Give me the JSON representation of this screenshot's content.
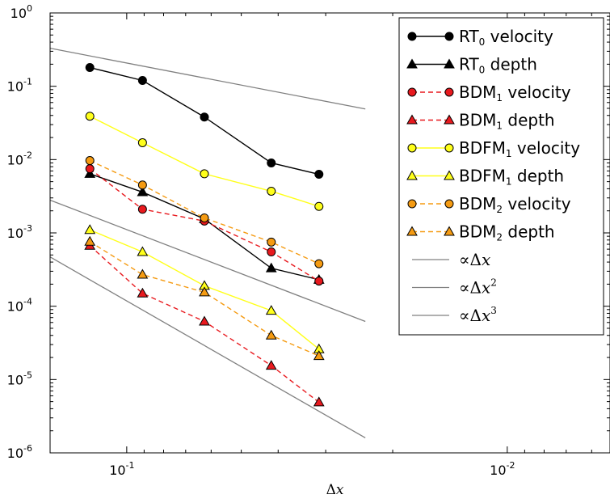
{
  "chart_data": {
    "type": "line",
    "x_scale": "log",
    "y_scale": "log",
    "x_reversed": true,
    "xlabel": "Δx",
    "ylabel": "",
    "xlim": [
      0.159,
      0.00537
    ],
    "ylim": [
      1e-06,
      1
    ],
    "x_ticks": [
      {
        "value": 0.1,
        "base": "10",
        "exp": "-1"
      },
      {
        "value": 0.01,
        "base": "10",
        "exp": "-2"
      }
    ],
    "y_ticks": [
      {
        "value": 1,
        "base": "10",
        "exp": "0"
      },
      {
        "value": 0.1,
        "base": "10",
        "exp": "-1"
      },
      {
        "value": 0.01,
        "base": "10",
        "exp": "-2"
      },
      {
        "value": 0.001,
        "base": "10",
        "exp": "-3"
      },
      {
        "value": 0.0001,
        "base": "10",
        "exp": "-4"
      },
      {
        "value": 1e-05,
        "base": "10",
        "exp": "-5"
      },
      {
        "value": 1e-06,
        "base": "10",
        "exp": "-6"
      }
    ],
    "grid": false,
    "legend_position": "top-right",
    "x": [
      0.125,
      0.0909,
      0.0625,
      0.0417,
      0.03125
    ],
    "series": [
      {
        "name": "RT0 velocity",
        "label_main": "RT",
        "label_sub": "0",
        "label_rest": " velocity",
        "color": "#000000",
        "marker": "circle",
        "dashed": false,
        "values": [
          0.18,
          0.12,
          0.038,
          0.009,
          0.0063
        ]
      },
      {
        "name": "RT0 depth",
        "label_main": "RT",
        "label_sub": "0",
        "label_rest": " depth",
        "color": "#000000",
        "marker": "triangle",
        "dashed": false,
        "values": [
          0.0064,
          0.0036,
          0.00155,
          0.00033,
          0.00023
        ]
      },
      {
        "name": "BDM1 velocity",
        "label_main": "BDM",
        "label_sub": "1",
        "label_rest": " velocity",
        "color": "#e8191e",
        "marker": "circle",
        "dashed": true,
        "values": [
          0.0075,
          0.0021,
          0.00145,
          0.00055,
          0.00022
        ]
      },
      {
        "name": "BDM1 depth",
        "label_main": "BDM",
        "label_sub": "1",
        "label_rest": " depth",
        "color": "#e8191e",
        "marker": "triangle",
        "dashed": true,
        "values": [
          0.00067,
          0.00015,
          6.2e-05,
          1.55e-05,
          4.9e-06
        ]
      },
      {
        "name": "BDFM1 velocity",
        "label_main": "BDFM",
        "label_sub": "1",
        "label_rest": " velocity",
        "color": "#ffff1a",
        "marker": "circle",
        "dashed": false,
        "values": [
          0.039,
          0.017,
          0.0064,
          0.0037,
          0.0023
        ]
      },
      {
        "name": "BDFM1 depth",
        "label_main": "BDFM",
        "label_sub": "1",
        "label_rest": " depth",
        "color": "#ffff1a",
        "marker": "triangle",
        "dashed": false,
        "values": [
          0.0011,
          0.00055,
          0.00019,
          8.7e-05,
          2.6e-05
        ]
      },
      {
        "name": "BDM2 velocity",
        "label_main": "BDM",
        "label_sub": "2",
        "label_rest": " velocity",
        "color": "#f59b12",
        "marker": "circle",
        "dashed": true,
        "values": [
          0.0097,
          0.0045,
          0.0016,
          0.00075,
          0.00038
        ]
      },
      {
        "name": "BDM2 depth",
        "label_main": "BDM",
        "label_sub": "2",
        "label_rest": " depth",
        "color": "#f59b12",
        "marker": "triangle",
        "dashed": true,
        "values": [
          0.00076,
          0.00027,
          0.000155,
          4e-05,
          2.1e-05
        ]
      }
    ],
    "reference_lines": [
      {
        "name": "∝Δx",
        "label_prefix": "∝Δ",
        "label_var": "x",
        "label_exp": "",
        "color": "#808080",
        "x": [
          0.159,
          0.0236
        ],
        "y": [
          0.33,
          0.049
        ]
      },
      {
        "name": "∝Δx2",
        "label_prefix": "∝Δ",
        "label_var": "x",
        "label_exp": "2",
        "color": "#808080",
        "x": [
          0.159,
          0.0236
        ],
        "y": [
          0.0028,
          6.2e-05
        ]
      },
      {
        "name": "∝Δx3",
        "label_prefix": "∝Δ",
        "label_var": "x",
        "label_exp": "3",
        "color": "#808080",
        "x": [
          0.159,
          0.0236
        ],
        "y": [
          0.00047,
          1.6e-06
        ]
      }
    ]
  }
}
